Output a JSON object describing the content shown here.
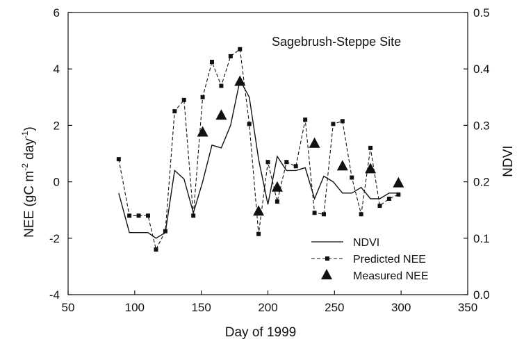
{
  "chart_data": {
    "type": "line",
    "annotation": "Sagebrush-Steppe Site",
    "xlabel": "Day of 1999",
    "ylabel_parts": [
      "NEE (gC m",
      "-2",
      " day",
      "-1",
      ")"
    ],
    "y2label": "NDVI",
    "xlim": [
      50,
      350
    ],
    "ylim": [
      -4,
      6
    ],
    "y2lim": [
      0.0,
      0.5
    ],
    "xticks": [
      "50",
      "100",
      "150",
      "200",
      "250",
      "300",
      "350"
    ],
    "yticks": [
      "-4",
      "-2",
      "0",
      "2",
      "4",
      "6"
    ],
    "y2ticks": [
      "0.0",
      "0.1",
      "0.2",
      "0.3",
      "0.4",
      "0.5"
    ],
    "legend_placement": "lower-right",
    "grid": false,
    "series": [
      {
        "name": "NDVI",
        "axis": "right",
        "style": "solid line",
        "x": [
          88,
          96,
          104,
          110,
          116,
          123,
          130,
          137,
          144,
          151,
          158,
          165,
          172,
          179,
          186,
          193,
          200,
          207,
          214,
          221,
          228,
          235,
          242,
          249,
          256,
          263,
          270,
          277,
          284,
          291,
          298
        ],
        "y": [
          0.18,
          0.11,
          0.11,
          0.11,
          0.1,
          0.11,
          0.22,
          0.205,
          0.145,
          0.2,
          0.265,
          0.26,
          0.3,
          0.38,
          0.35,
          0.24,
          0.16,
          0.245,
          0.22,
          0.22,
          0.225,
          0.17,
          0.21,
          0.2,
          0.18,
          0.18,
          0.19,
          0.17,
          0.17,
          0.18,
          0.18
        ]
      },
      {
        "name": "Predicted NEE",
        "axis": "left",
        "style": "dashed line with small squares",
        "x": [
          88,
          96,
          103,
          110,
          116,
          123,
          130,
          137,
          144,
          151,
          158,
          165,
          172,
          179,
          186,
          193,
          200,
          207,
          214,
          221,
          228,
          235,
          242,
          249,
          256,
          263,
          270,
          277,
          284,
          291,
          298
        ],
        "y": [
          0.8,
          -1.2,
          -1.2,
          -1.2,
          -2.4,
          -1.75,
          2.5,
          2.9,
          -1.2,
          3.0,
          4.25,
          3.4,
          4.45,
          4.7,
          2.05,
          -1.85,
          0.7,
          -0.7,
          0.7,
          0.55,
          2.2,
          -1.1,
          -1.15,
          2.05,
          2.15,
          0.15,
          -1.15,
          1.2,
          -0.85,
          -0.6,
          -0.45
        ]
      },
      {
        "name": "Measured NEE",
        "axis": "left",
        "style": "large filled triangles",
        "x": [
          151,
          165,
          179,
          193,
          207,
          235,
          256,
          277,
          298
        ],
        "y": [
          1.75,
          2.35,
          3.55,
          -1.05,
          -0.2,
          1.35,
          0.55,
          0.45,
          -0.05
        ]
      }
    ]
  }
}
